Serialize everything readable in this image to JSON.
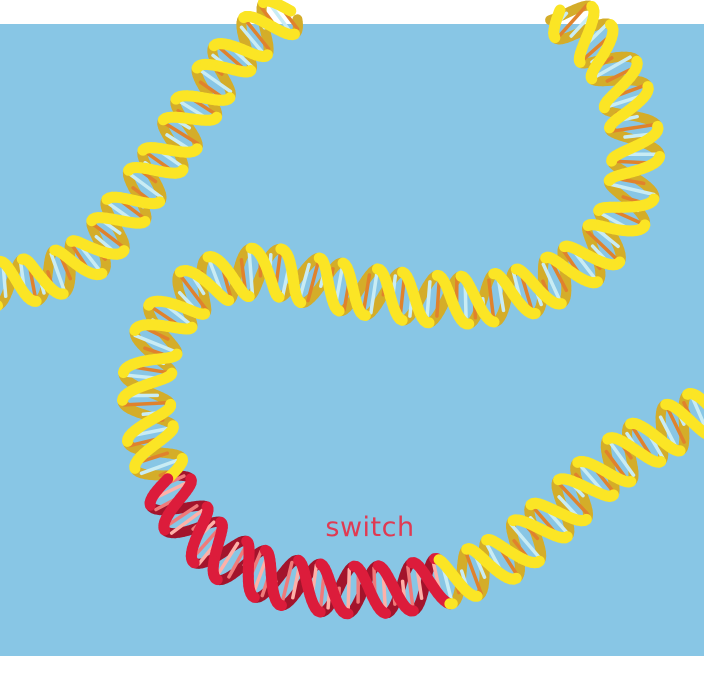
{
  "illustration": {
    "label": "switch",
    "colors": {
      "background": "#88c6e5",
      "page": "#ffffff",
      "strand_front": "#fbe525",
      "strand_back": "#d4ad29",
      "strand_edge": "#c99d1e",
      "base_light": "#c9ecf4",
      "base_orange": "#e0822c",
      "switch_front": "#dc1c3b",
      "switch_back": "#a3142c",
      "switch_base": "#f07a7a",
      "label": "#e03a52"
    }
  }
}
